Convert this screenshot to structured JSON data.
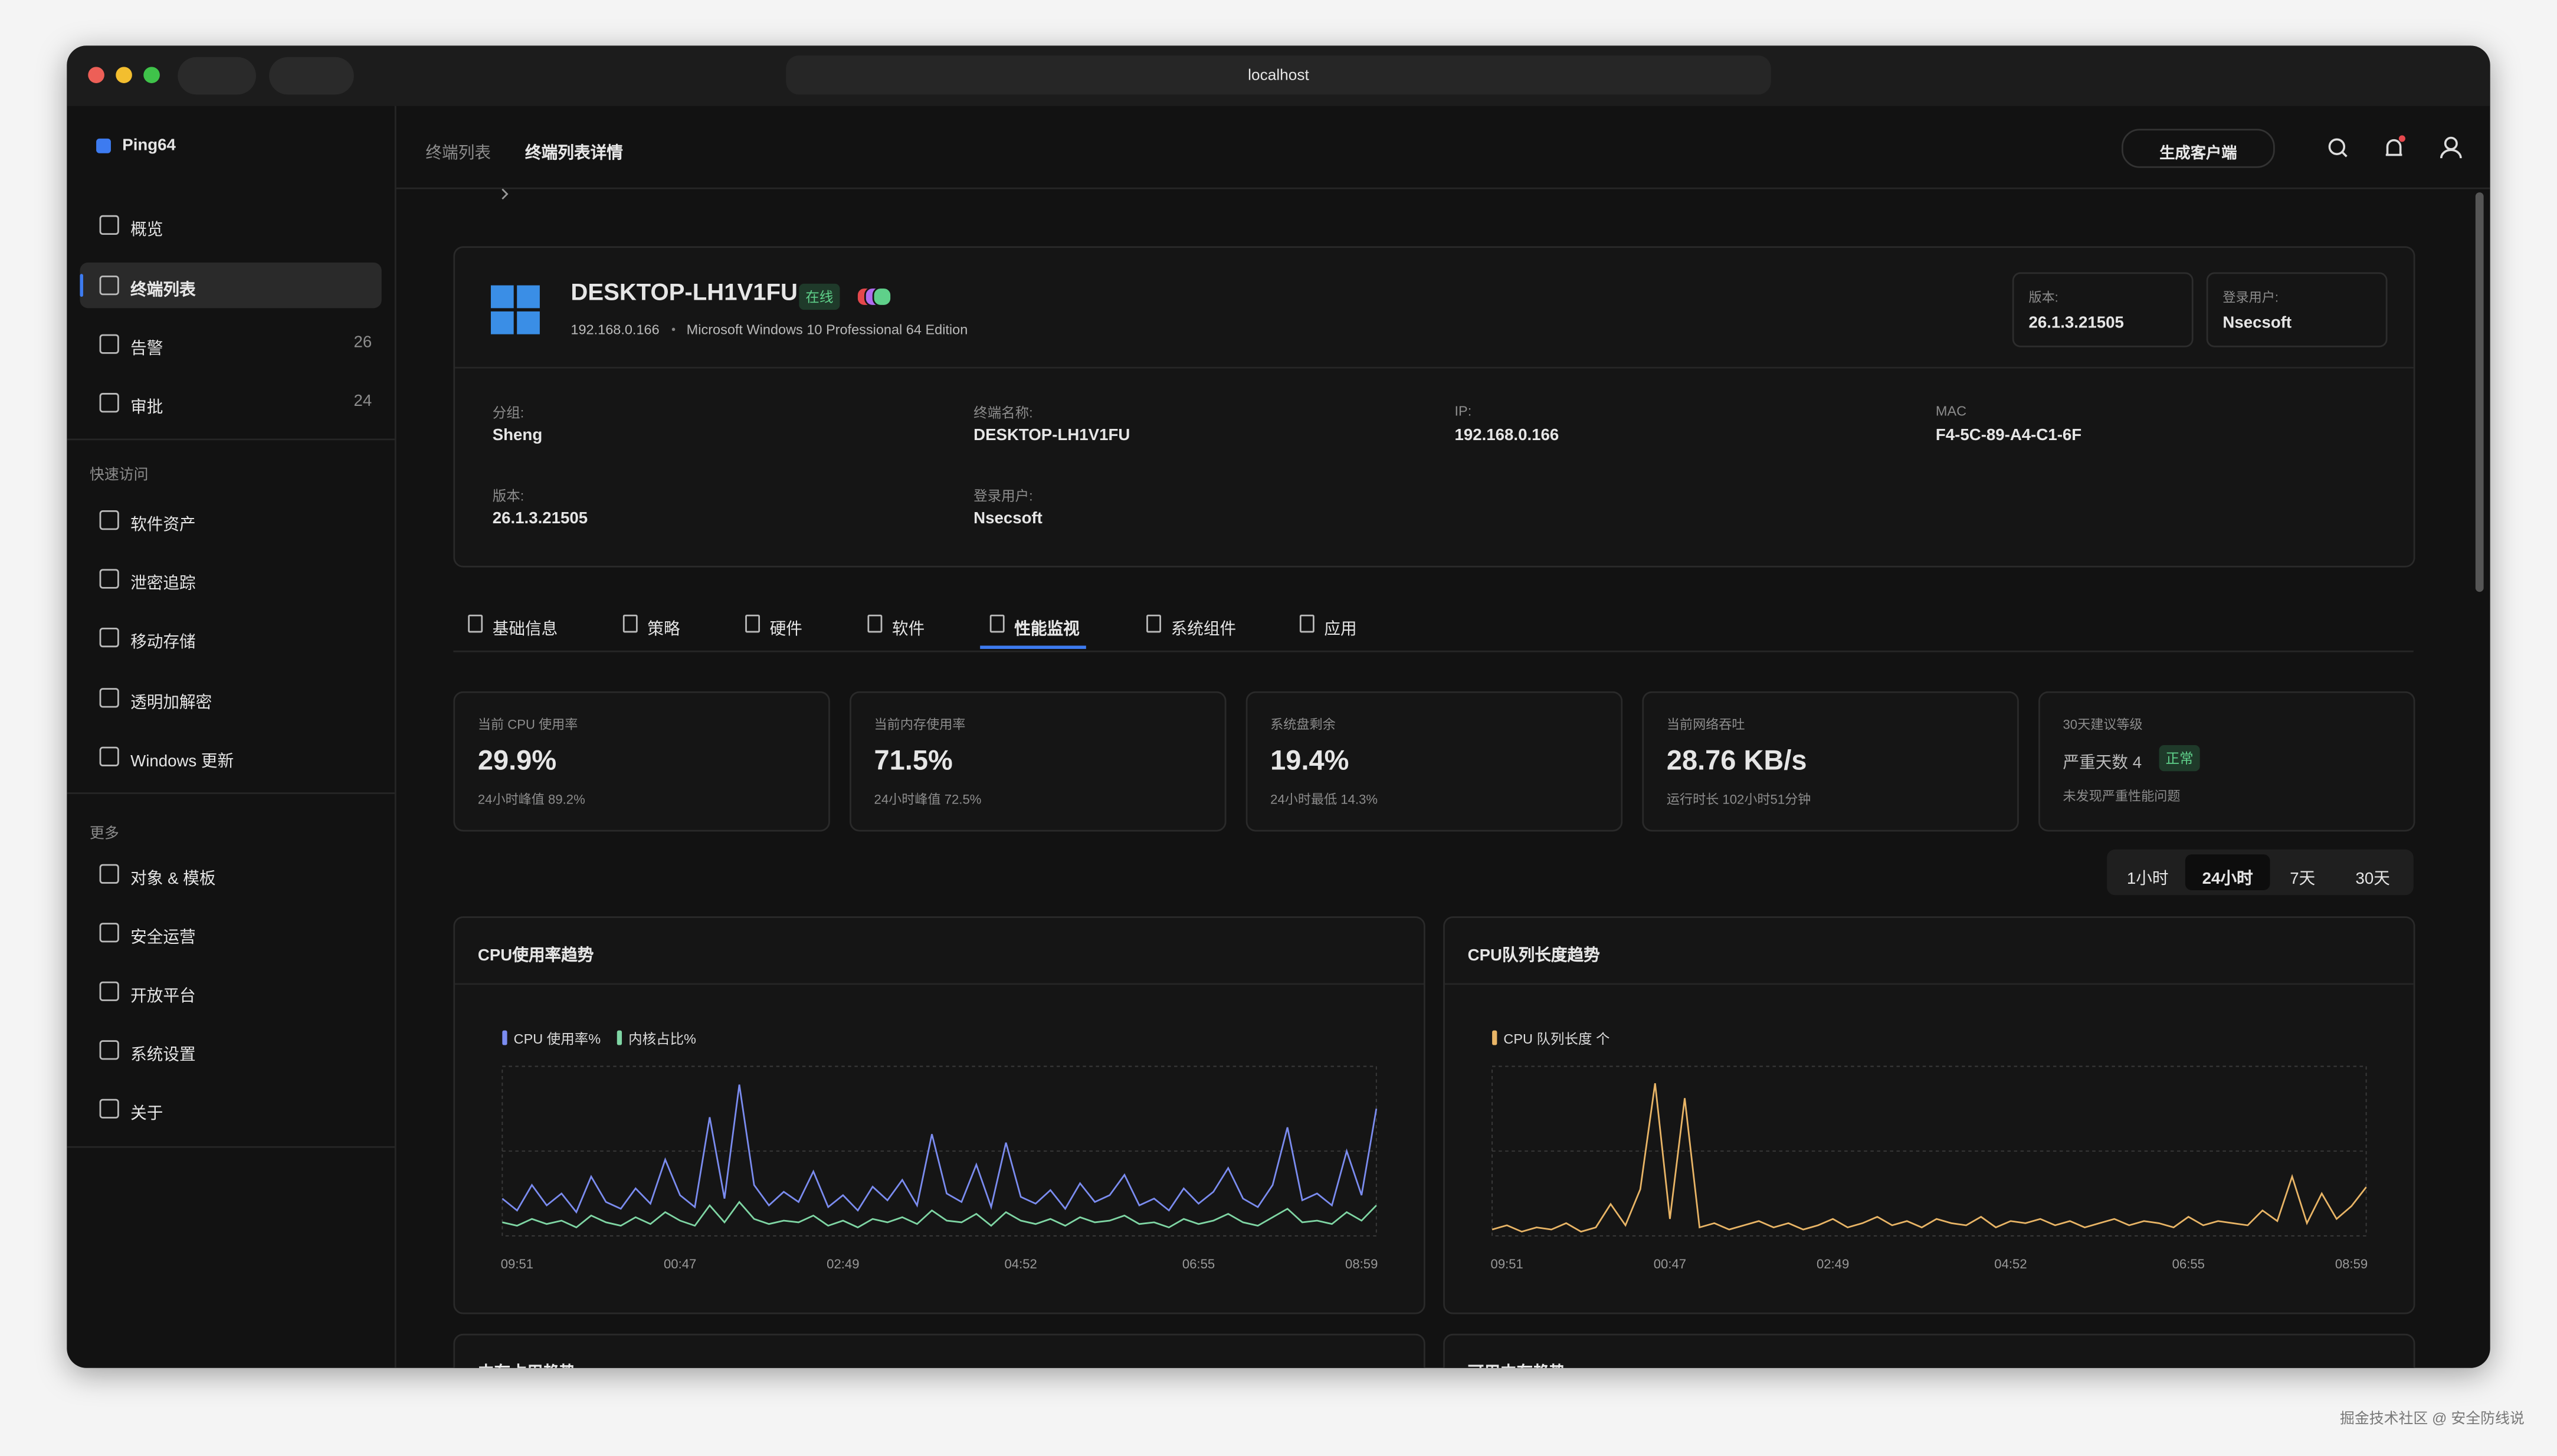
{
  "browser": {
    "url": "localhost"
  },
  "sidebar": {
    "brand": "Ping64",
    "main": [
      {
        "label": "概览"
      },
      {
        "label": "终端列表"
      },
      {
        "label": "告警",
        "count": 26
      },
      {
        "label": "审批",
        "count": 24
      }
    ],
    "quick": {
      "title": "快速访问",
      "items": [
        "软件资产",
        "泄密追踪",
        "移动存储",
        "透明加解密",
        "Windows 更新"
      ]
    },
    "more": {
      "title": "更多",
      "items": [
        "对象 & 模板",
        "安全运营",
        "开放平台",
        "系统设置",
        "关于"
      ]
    }
  },
  "breadcrumb": [
    "终端列表",
    "终端列表详情"
  ],
  "header": {
    "button": "生成客户端"
  },
  "device": {
    "name": "DESKTOP-LH1V1FU",
    "status": "在线",
    "ip": "192.168.0.166",
    "os": "Microsoft Windows 10 Professional 64 Edition",
    "badges": [
      {
        "label": "版本:",
        "value": "26.1.3.21505"
      },
      {
        "label": "登录用户:",
        "value": "Nsecsoft"
      }
    ],
    "fields": [
      {
        "label": "分组:",
        "value": "Sheng"
      },
      {
        "label": "终端名称:",
        "value": "DESKTOP-LH1V1FU"
      },
      {
        "label": "IP:",
        "value": "192.168.0.166"
      },
      {
        "label": "MAC",
        "value": "F4-5C-89-A4-C1-6F"
      },
      {
        "label": "版本:",
        "value": "26.1.3.21505"
      },
      {
        "label": "登录用户:",
        "value": "Nsecsoft"
      }
    ]
  },
  "tabs": [
    "基础信息",
    "策略",
    "硬件",
    "软件",
    "性能监视",
    "系统组件",
    "应用"
  ],
  "stats": [
    {
      "label": "当前 CPU 使用率",
      "value": "29.9%",
      "sub": "24小时峰值 89.2%"
    },
    {
      "label": "当前内存使用率",
      "value": "71.5%",
      "sub": "24小时峰值 72.5%"
    },
    {
      "label": "系统盘剩余",
      "value": "19.4%",
      "sub": "24小时最低 14.3%"
    },
    {
      "label": "当前网络吞吐",
      "value": "28.76 KB/s",
      "sub": "运行时长 102小时51分钟"
    }
  ],
  "advice": {
    "label": "30天建议等级",
    "value": "严重天数 4",
    "badge": "正常",
    "sub": "未发现严重性能问题"
  },
  "ranges": [
    "1小时",
    "24小时",
    "7天",
    "30天"
  ],
  "chart_data": [
    {
      "type": "line",
      "title": "CPU使用率趋势",
      "xlim": [
        0,
        59
      ],
      "ylim": [
        0,
        100
      ],
      "xticks": [
        {
          "value": 1,
          "label": "09:51"
        },
        {
          "value": 12,
          "label": "00:47"
        },
        {
          "value": 23,
          "label": "02:49"
        },
        {
          "value": 35,
          "label": "04:52"
        },
        {
          "value": 47,
          "label": "06:55"
        },
        {
          "value": 58,
          "label": "08:59"
        }
      ],
      "series": [
        {
          "name": "CPU 使用率%",
          "color": "#7b8cf0",
          "values": [
            22,
            15,
            30,
            18,
            25,
            14,
            35,
            20,
            16,
            28,
            19,
            45,
            24,
            17,
            70,
            22,
            89.2,
            30,
            18,
            26,
            20,
            38,
            17,
            24,
            15,
            29,
            21,
            33,
            18,
            60,
            25,
            20,
            42,
            17,
            55,
            23,
            19,
            27,
            16,
            31,
            20,
            24,
            36,
            18,
            22,
            15,
            28,
            19,
            26,
            40,
            22,
            17,
            30,
            64,
            21,
            25,
            18,
            50,
            24,
            75
          ]
        },
        {
          "name": "内核占比%",
          "color": "#7fd6a4",
          "values": [
            8,
            6,
            10,
            7,
            9,
            5,
            12,
            8,
            6,
            11,
            7,
            14,
            9,
            6,
            18,
            8,
            20,
            10,
            7,
            9,
            8,
            12,
            6,
            9,
            5,
            10,
            8,
            11,
            7,
            15,
            9,
            8,
            13,
            6,
            14,
            9,
            7,
            10,
            6,
            11,
            8,
            9,
            12,
            7,
            8,
            5,
            10,
            7,
            9,
            13,
            8,
            6,
            11,
            16,
            8,
            9,
            7,
            14,
            9,
            18
          ]
        }
      ]
    },
    {
      "type": "line",
      "title": "CPU队列长度趋势",
      "xlim": [
        0,
        59
      ],
      "ylim": [
        0,
        8
      ],
      "xticks": [
        {
          "value": 1,
          "label": "09:51"
        },
        {
          "value": 12,
          "label": "00:47"
        },
        {
          "value": 23,
          "label": "02:49"
        },
        {
          "value": 35,
          "label": "04:52"
        },
        {
          "value": 47,
          "label": "06:55"
        },
        {
          "value": 58,
          "label": "08:59"
        }
      ],
      "series": [
        {
          "name": "CPU 队列长度 个",
          "color": "#e9b566",
          "values": [
            0.3,
            0.5,
            0.2,
            0.4,
            0.3,
            0.6,
            0.2,
            0.4,
            1.5,
            0.5,
            2.2,
            7.2,
            0.8,
            6.5,
            0.4,
            0.6,
            0.3,
            0.5,
            0.7,
            0.4,
            0.6,
            0.3,
            0.5,
            0.8,
            0.4,
            0.6,
            0.9,
            0.5,
            0.7,
            0.4,
            0.8,
            0.6,
            0.5,
            0.9,
            0.4,
            0.7,
            0.6,
            0.8,
            0.5,
            0.7,
            0.4,
            0.6,
            0.8,
            0.5,
            0.7,
            0.6,
            0.4,
            0.9,
            0.5,
            0.7,
            0.6,
            0.5,
            1.2,
            0.7,
            2.8,
            0.6,
            2.0,
            0.8,
            1.4,
            2.3
          ]
        }
      ]
    }
  ],
  "lower_titles": [
    "内存占用趋势",
    "可用内存趋势"
  ],
  "watermark": "掘金技术社区 @ 安全防线说"
}
